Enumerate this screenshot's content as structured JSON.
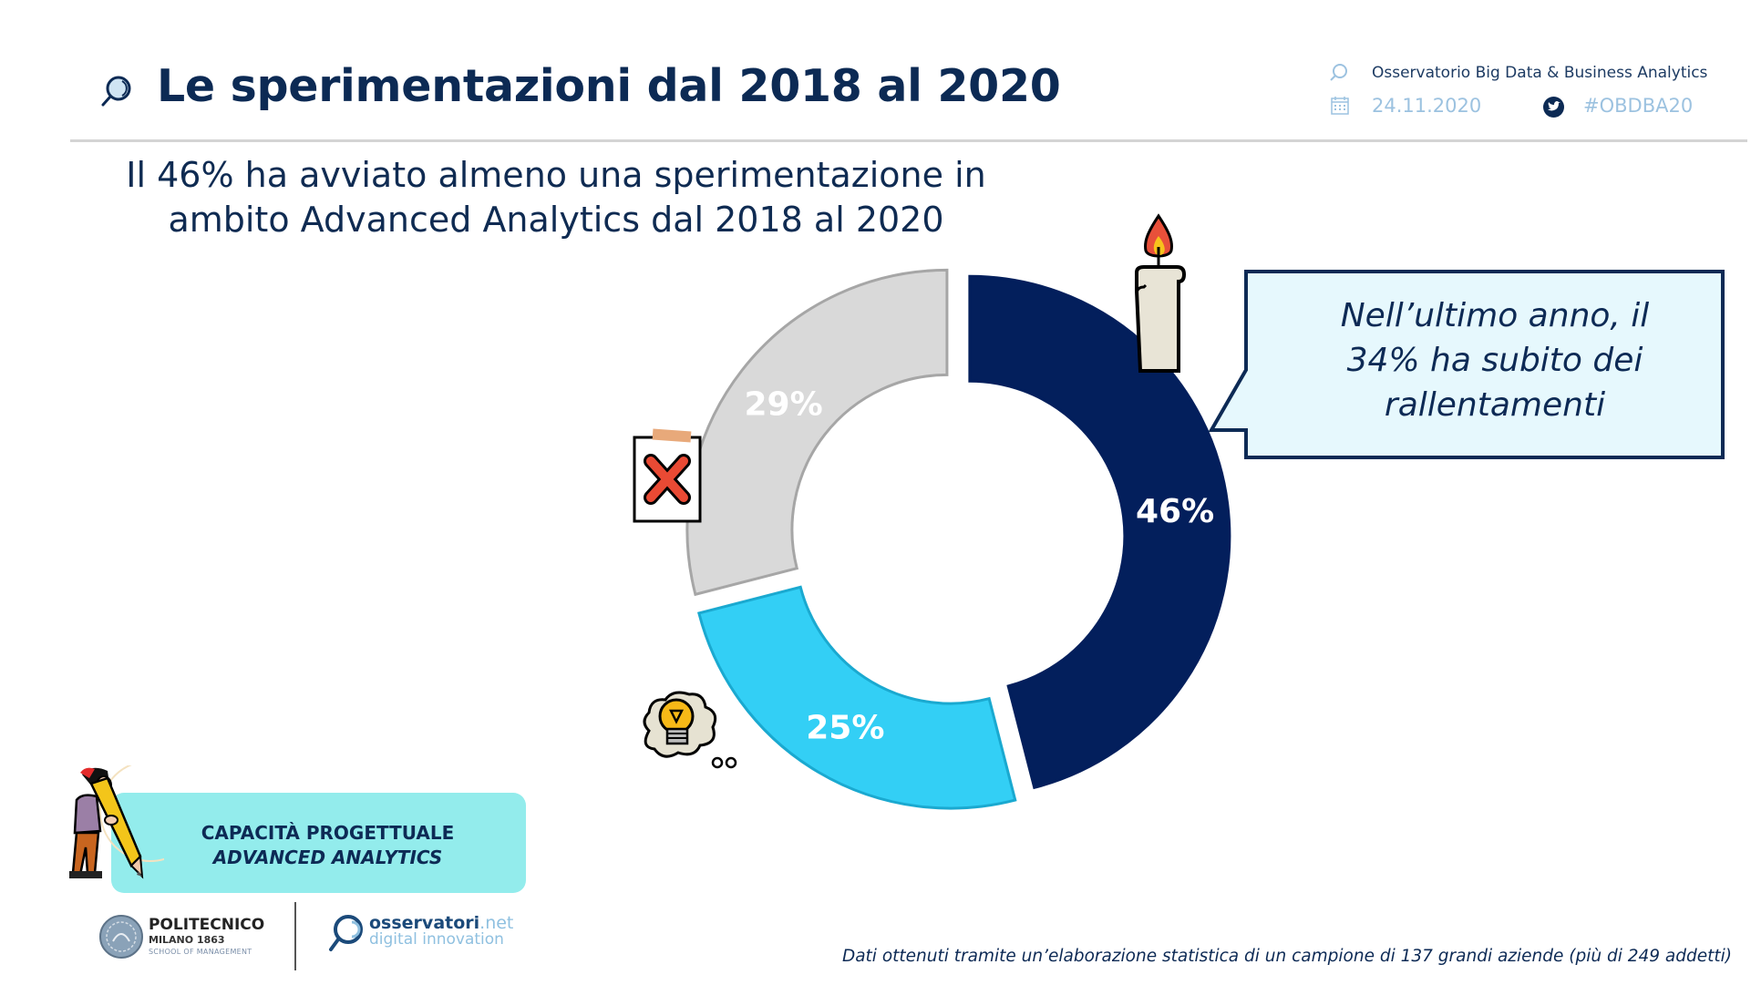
{
  "header": {
    "title": "Le sperimentazioni dal 2018 al 2020",
    "observatory": "Osservatorio Big Data & Business Analytics",
    "date": "24.11.2020",
    "hashtag": "#OBDBA20",
    "icons": [
      "magnifier-icon",
      "calendar-icon",
      "twitter-icon"
    ]
  },
  "subtitle": {
    "line1": "Il 46% ha avviato almeno una sperimentazione in",
    "line2": "ambito Advanced Analytics dal 2018 al 2020"
  },
  "callout": {
    "line1": "Nell’ultimo anno, il",
    "line2": "34% ha subito dei",
    "line3": "rallentamenti"
  },
  "category_tag": {
    "line1": "CAPACITÀ PROGETTUALE",
    "line2": "ADVANCED ANALYTICS"
  },
  "logos": {
    "polimi_1": "POLITECNICO",
    "polimi_2": "MILANO 1863",
    "polimi_3": "SCHOOL OF MANAGEMENT",
    "oss_1a": "osservatori",
    "oss_1b": ".net",
    "oss_2": "digital innovation"
  },
  "footnote": "Dati ottenuti tramite un’elaborazione statistica di un campione di 137 grandi aziende (più di 249 addetti)",
  "colors": {
    "navy": "#031f5c",
    "grey": "#d9d9d9",
    "cyan": "#33cff5",
    "title": "#0c2a54"
  },
  "chart_data": {
    "type": "pie",
    "subtype": "donut",
    "title": "Le sperimentazioni dal 2018 al 2020",
    "unit": "%",
    "slices": [
      {
        "label": "46%",
        "value": 46,
        "color": "#031f5c",
        "stroke": "#031f5c",
        "icon": "candle-icon"
      },
      {
        "label": "25%",
        "value": 25,
        "color": "#33cff5",
        "stroke": "#1aa9d0",
        "icon": "lightbulb-icon"
      },
      {
        "label": "29%",
        "value": 29,
        "color": "#d9d9d9",
        "stroke": "#a6a6a6",
        "icon": "clipboard-x-icon"
      }
    ],
    "start_angle_deg": 0,
    "direction": "clockwise",
    "exploded": true,
    "legend": "none"
  }
}
